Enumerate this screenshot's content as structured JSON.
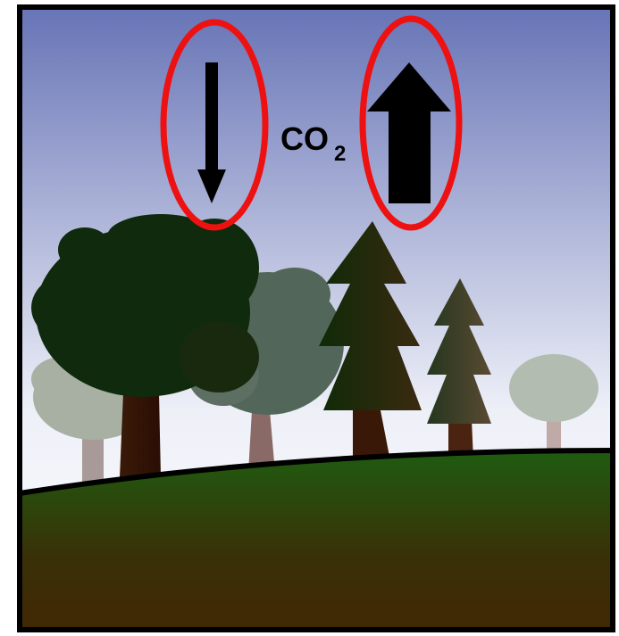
{
  "label": {
    "text": "CO",
    "subscript": "2"
  }
}
